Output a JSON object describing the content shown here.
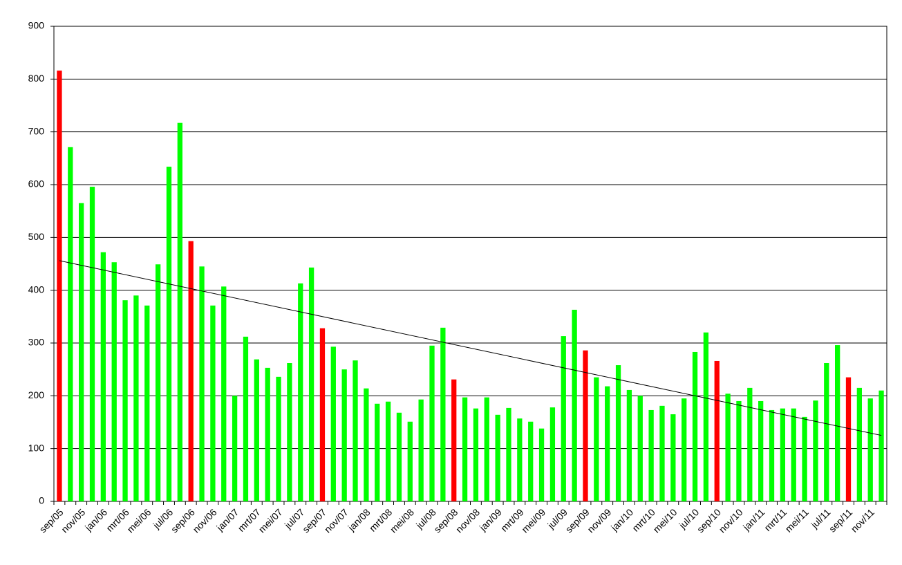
{
  "chart_data": {
    "type": "bar",
    "categories": [
      "sep/05",
      null,
      "nov/05",
      null,
      "jan/06",
      null,
      "mrt/06",
      null,
      "mei/06",
      null,
      "jul/06",
      null,
      "sep/06",
      null,
      "nov/06",
      null,
      "jan/07",
      null,
      "mrt/07",
      null,
      "mei/07",
      null,
      "jul/07",
      null,
      "sep/07",
      null,
      "nov/07",
      null,
      "jan/08",
      null,
      "mrt/08",
      null,
      "mei/08",
      null,
      "jul/08",
      null,
      "sep/08",
      null,
      "nov/08",
      null,
      "jan/09",
      null,
      "mrt/09",
      null,
      "mei/09",
      null,
      "jul/09",
      null,
      "sep/09",
      null,
      "nov/09",
      null,
      "jan/10",
      null,
      "mrt/10",
      null,
      "mei/10",
      null,
      "jul/10",
      null,
      "sep/10",
      null,
      "nov/10",
      null,
      "jan/11",
      null,
      "mrt/11",
      null,
      "mei/11",
      null,
      "jul/11",
      null,
      "sep/11",
      null,
      "nov/11",
      null
    ],
    "values": [
      816,
      671,
      565,
      596,
      472,
      453,
      381,
      390,
      371,
      449,
      634,
      717,
      493,
      445,
      371,
      407,
      200,
      312,
      269,
      253,
      236,
      262,
      413,
      443,
      328,
      293,
      250,
      267,
      214,
      185,
      189,
      168,
      151,
      193,
      295,
      329,
      231,
      197,
      176,
      197,
      164,
      177,
      157,
      151,
      138,
      178,
      313,
      363,
      286,
      235,
      218,
      258,
      211,
      200,
      173,
      181,
      165,
      195,
      283,
      320,
      266,
      204,
      190,
      215,
      190,
      173,
      176,
      176,
      160,
      191,
      262,
      296,
      235,
      215,
      195,
      210
    ],
    "colors": [
      "#ff0000",
      "#00ff00",
      "#00ff00",
      "#00ff00",
      "#00ff00",
      "#00ff00",
      "#00ff00",
      "#00ff00",
      "#00ff00",
      "#00ff00",
      "#00ff00",
      "#00ff00",
      "#ff0000",
      "#00ff00",
      "#00ff00",
      "#00ff00",
      "#00ff00",
      "#00ff00",
      "#00ff00",
      "#00ff00",
      "#00ff00",
      "#00ff00",
      "#00ff00",
      "#00ff00",
      "#ff0000",
      "#00ff00",
      "#00ff00",
      "#00ff00",
      "#00ff00",
      "#00ff00",
      "#00ff00",
      "#00ff00",
      "#00ff00",
      "#00ff00",
      "#00ff00",
      "#00ff00",
      "#ff0000",
      "#00ff00",
      "#00ff00",
      "#00ff00",
      "#00ff00",
      "#00ff00",
      "#00ff00",
      "#00ff00",
      "#00ff00",
      "#00ff00",
      "#00ff00",
      "#00ff00",
      "#ff0000",
      "#00ff00",
      "#00ff00",
      "#00ff00",
      "#00ff00",
      "#00ff00",
      "#00ff00",
      "#00ff00",
      "#00ff00",
      "#00ff00",
      "#00ff00",
      "#00ff00",
      "#ff0000",
      "#00ff00",
      "#00ff00",
      "#00ff00",
      "#00ff00",
      "#00ff00",
      "#00ff00",
      "#00ff00",
      "#00ff00",
      "#00ff00",
      "#00ff00",
      "#00ff00",
      "#ff0000",
      "#00ff00",
      "#00ff00",
      "#00ff00"
    ],
    "trendline": {
      "color": "#000000",
      "values": [
        456,
        125
      ]
    },
    "ylim": [
      0,
      900
    ],
    "yticks": [
      0,
      100,
      200,
      300,
      400,
      500,
      600,
      700,
      800,
      900
    ],
    "grid": true
  }
}
